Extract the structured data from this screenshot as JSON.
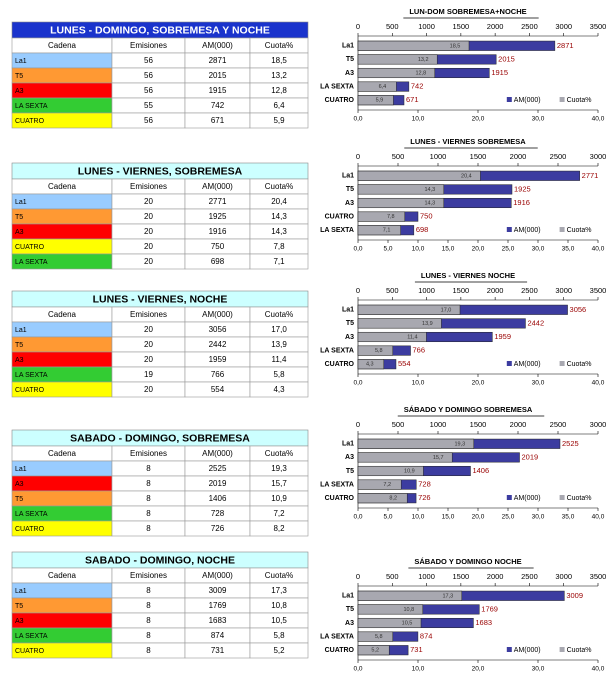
{
  "tables": [
    {
      "title": "LUNES - DOMINGO, SOBREMESA Y NOCHE",
      "title_background": "#1a33cc",
      "title_color": "#ffffff",
      "header": [
        "Cadena",
        "Emisiones",
        "AM(000)",
        "Cuota%"
      ],
      "rows": [
        [
          "La1",
          "56",
          "2871",
          "18,5"
        ],
        [
          "T5",
          "56",
          "2015",
          "13,2"
        ],
        [
          "A3",
          "56",
          "1915",
          "12,8"
        ],
        [
          "LA SEXTA",
          "55",
          "742",
          "6,4"
        ],
        [
          "CUATRO",
          "56",
          "671",
          "5,9"
        ]
      ],
      "row_colors": [
        "#99ccff",
        "#ff9933",
        "#ff0000",
        "#33cc33",
        "#ffff00"
      ]
    },
    {
      "title": "LUNES - VIERNES, SOBREMESA",
      "title_background": "#ccffff",
      "title_color": "#000000",
      "header": [
        "Cadena",
        "Emisiones",
        "AM(000)",
        "Cuota%"
      ],
      "rows": [
        [
          "La1",
          "20",
          "2771",
          "20,4"
        ],
        [
          "T5",
          "20",
          "1925",
          "14,3"
        ],
        [
          "A3",
          "20",
          "1916",
          "14,3"
        ],
        [
          "CUATRO",
          "20",
          "750",
          "7,8"
        ],
        [
          "LA SEXTA",
          "20",
          "698",
          "7,1"
        ]
      ],
      "row_colors": [
        "#99ccff",
        "#ff9933",
        "#ff0000",
        "#ffff00",
        "#33cc33"
      ]
    },
    {
      "title": "LUNES - VIERNES, NOCHE",
      "title_background": "#ccffff",
      "title_color": "#000000",
      "header": [
        "Cadena",
        "Emisiones",
        "AM(000)",
        "Cuota%"
      ],
      "rows": [
        [
          "La1",
          "20",
          "3056",
          "17,0"
        ],
        [
          "T5",
          "20",
          "2442",
          "13,9"
        ],
        [
          "A3",
          "20",
          "1959",
          "11,4"
        ],
        [
          "LA SEXTA",
          "19",
          "766",
          "5,8"
        ],
        [
          "CUATRO",
          "20",
          "554",
          "4,3"
        ]
      ],
      "row_colors": [
        "#99ccff",
        "#ff9933",
        "#ff0000",
        "#33cc33",
        "#ffff00"
      ]
    },
    {
      "title": "SABADO - DOMINGO, SOBREMESA",
      "title_background": "#ccffff",
      "title_color": "#000000",
      "header": [
        "Cadena",
        "Emisiones",
        "AM(000)",
        "Cuota%"
      ],
      "rows": [
        [
          "La1",
          "8",
          "2525",
          "19,3"
        ],
        [
          "A3",
          "8",
          "2019",
          "15,7"
        ],
        [
          "T5",
          "8",
          "1406",
          "10,9"
        ],
        [
          "LA SEXTA",
          "8",
          "728",
          "7,2"
        ],
        [
          "CUATRO",
          "8",
          "726",
          "8,2"
        ]
      ],
      "row_colors": [
        "#99ccff",
        "#ff0000",
        "#ff9933",
        "#33cc33",
        "#ffff00"
      ]
    },
    {
      "title": "SABADO - DOMINGO, NOCHE",
      "title_background": "#ccffff",
      "title_color": "#000000",
      "header": [
        "Cadena",
        "Emisiones",
        "AM(000)",
        "Cuota%"
      ],
      "rows": [
        [
          "La1",
          "8",
          "3009",
          "17,3"
        ],
        [
          "T5",
          "8",
          "1769",
          "10,8"
        ],
        [
          "A3",
          "8",
          "1683",
          "10,5"
        ],
        [
          "LA SEXTA",
          "8",
          "874",
          "5,8"
        ],
        [
          "CUATRO",
          "8",
          "731",
          "5,2"
        ]
      ],
      "row_colors": [
        "#99ccff",
        "#ff9933",
        "#ff0000",
        "#33cc33",
        "#ffff00"
      ]
    }
  ],
  "chart_data": [
    {
      "type": "bar",
      "orientation": "horizontal",
      "title": "LUN-DOM SOBREMESA+NOCHE",
      "legend": "bottom-right",
      "categories": [
        "La1",
        "T5",
        "A3",
        "LA SEXTA",
        "CUATRO"
      ],
      "series": [
        {
          "name": "AM(000)",
          "color": "#3c3ca0",
          "axis": "x2",
          "values": [
            2871,
            2015,
            1915,
            742,
            671
          ]
        },
        {
          "name": "Cuota%",
          "color": "#a8a8b0",
          "values": [
            18.5,
            13.2,
            12.8,
            6.4,
            5.9
          ],
          "value_labels": [
            "18,5",
            "13,2",
            "12,8",
            "6,4",
            "5,9"
          ]
        }
      ],
      "xlim": [
        0,
        40
      ],
      "xticks": [
        {
          "value": 0,
          "label": "0,0"
        },
        {
          "value": 10,
          "label": "10,0"
        },
        {
          "value": 20,
          "label": "20,0"
        },
        {
          "value": 30,
          "label": "30,0"
        },
        {
          "value": 40,
          "label": "40,0"
        }
      ],
      "x2lim": [
        0,
        3500
      ],
      "x2ticks": [
        0,
        500,
        1000,
        1500,
        2000,
        2500,
        3000,
        3500
      ]
    },
    {
      "type": "bar",
      "orientation": "horizontal",
      "title": "LUNES - VIERNES SOBREMESA",
      "legend": "bottom-right",
      "categories": [
        "La1",
        "T5",
        "A3",
        "CUATRO",
        "LA SEXTA"
      ],
      "series": [
        {
          "name": "AM(000)",
          "color": "#3c3ca0",
          "axis": "x2",
          "values": [
            2771,
            1925,
            1916,
            750,
            698
          ]
        },
        {
          "name": "Cuota%",
          "color": "#a8a8b0",
          "values": [
            20.4,
            14.3,
            14.3,
            7.8,
            7.1
          ],
          "value_labels": [
            "20,4",
            "14,3",
            "14,3",
            "7,8",
            "7,1"
          ]
        }
      ],
      "xlim": [
        0,
        40
      ],
      "xticks": [
        {
          "value": 0,
          "label": "0,0"
        },
        {
          "value": 5,
          "label": "5,0"
        },
        {
          "value": 10,
          "label": "10,0"
        },
        {
          "value": 15,
          "label": "15,0"
        },
        {
          "value": 20,
          "label": "20,0"
        },
        {
          "value": 25,
          "label": "25,0"
        },
        {
          "value": 30,
          "label": "30,0"
        },
        {
          "value": 35,
          "label": "35,0"
        },
        {
          "value": 40,
          "label": "40,0"
        }
      ],
      "x2lim": [
        0,
        3000
      ],
      "x2ticks": [
        0,
        500,
        1000,
        1500,
        2000,
        2500,
        3000
      ]
    },
    {
      "type": "bar",
      "orientation": "horizontal",
      "title": "LUNES - VIERNES  NOCHE",
      "legend": "bottom-right",
      "categories": [
        "La1",
        "T5",
        "A3",
        "LA SEXTA",
        "CUATRO"
      ],
      "series": [
        {
          "name": "AM(000)",
          "color": "#3c3ca0",
          "axis": "x2",
          "values": [
            3056,
            2442,
            1959,
            766,
            554
          ]
        },
        {
          "name": "Cuota%",
          "color": "#a8a8b0",
          "values": [
            17.0,
            13.9,
            11.4,
            5.8,
            4.3
          ],
          "value_labels": [
            "17,0",
            "13,9",
            "11,4",
            "5,8",
            "4,3"
          ]
        }
      ],
      "xlim": [
        0,
        40
      ],
      "xticks": [
        {
          "value": 0,
          "label": "0,0"
        },
        {
          "value": 10,
          "label": "10,0"
        },
        {
          "value": 20,
          "label": "20,0"
        },
        {
          "value": 30,
          "label": "30,0"
        },
        {
          "value": 40,
          "label": "40,0"
        }
      ],
      "x2lim": [
        0,
        3500
      ],
      "x2ticks": [
        0,
        500,
        1000,
        1500,
        2000,
        2500,
        3000,
        3500
      ]
    },
    {
      "type": "bar",
      "orientation": "horizontal",
      "title": "SÁBADO Y DOMINGO SOBREMESA",
      "legend": "bottom-right",
      "categories": [
        "La1",
        "A3",
        "T5",
        "LA SEXTA",
        "CUATRO"
      ],
      "series": [
        {
          "name": "AM(000)",
          "color": "#3c3ca0",
          "axis": "x2",
          "values": [
            2525,
            2019,
            1406,
            728,
            726
          ]
        },
        {
          "name": "Cuota%",
          "color": "#a8a8b0",
          "values": [
            19.3,
            15.7,
            10.9,
            7.2,
            8.2
          ],
          "value_labels": [
            "19,3",
            "15,7",
            "10,9",
            "7,2",
            "8,2"
          ]
        }
      ],
      "xlim": [
        0,
        40
      ],
      "xticks": [
        {
          "value": 0,
          "label": "0,0"
        },
        {
          "value": 5,
          "label": "5,0"
        },
        {
          "value": 10,
          "label": "10,0"
        },
        {
          "value": 15,
          "label": "15,0"
        },
        {
          "value": 20,
          "label": "20,0"
        },
        {
          "value": 25,
          "label": "25,0"
        },
        {
          "value": 30,
          "label": "30,0"
        },
        {
          "value": 35,
          "label": "35,0"
        },
        {
          "value": 40,
          "label": "40,0"
        }
      ],
      "x2lim": [
        0,
        3000
      ],
      "x2ticks": [
        0,
        500,
        1000,
        1500,
        2000,
        2500,
        3000
      ]
    },
    {
      "type": "bar",
      "orientation": "horizontal",
      "title": "SÁBADO Y DOMINGO  NOCHE",
      "legend": "bottom-right",
      "categories": [
        "La1",
        "T5",
        "A3",
        "LA SEXTA",
        "CUATRO"
      ],
      "series": [
        {
          "name": "AM(000)",
          "color": "#3c3ca0",
          "axis": "x2",
          "values": [
            3009,
            1769,
            1683,
            874,
            731
          ]
        },
        {
          "name": "Cuota%",
          "color": "#a8a8b0",
          "values": [
            17.3,
            10.8,
            10.5,
            5.8,
            5.2
          ],
          "value_labels": [
            "17,3",
            "10,8",
            "10,5",
            "5,8",
            "5,2"
          ]
        }
      ],
      "xlim": [
        0,
        40
      ],
      "xticks": [
        {
          "value": 0,
          "label": "0,0"
        },
        {
          "value": 10,
          "label": "10,0"
        },
        {
          "value": 20,
          "label": "20,0"
        },
        {
          "value": 30,
          "label": "30,0"
        },
        {
          "value": 40,
          "label": "40,0"
        }
      ],
      "x2lim": [
        0,
        3500
      ],
      "x2ticks": [
        0,
        500,
        1000,
        1500,
        2000,
        2500,
        3000,
        3500
      ]
    }
  ]
}
